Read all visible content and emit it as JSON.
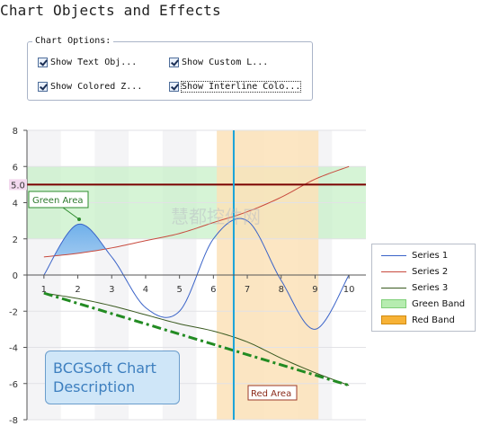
{
  "window": {
    "title": "Chart Objects and Effects"
  },
  "options": {
    "group_label": "Chart Options:",
    "show_text_objects": {
      "label": "Show Text Obj...",
      "checked": true
    },
    "show_custom_labels": {
      "label": "Show Custom L...",
      "checked": true
    },
    "show_colored_zones": {
      "label": "Show Colored Z...",
      "checked": true
    },
    "show_interline_colors": {
      "label": "Show Interline Colo...",
      "checked": true
    }
  },
  "chart": {
    "callout_line1": "BCGSoft Chart",
    "callout_line2": "Description",
    "green_area_label": "Green Area",
    "red_area_label": "Red Area",
    "const_line_label": "5.0",
    "watermark": "慧都控件网",
    "colors": {
      "series1": "#3a63c8",
      "series2": "#c84a3e",
      "series3": "#3a5a20",
      "green_band": "#c8f0c8",
      "red_band": "#fbe2b8",
      "const_line": "#7a0000",
      "vertical_line": "#1aa3d9",
      "trend_line": "#228b22"
    }
  },
  "legend": {
    "items": [
      {
        "label": "Series 1",
        "kind": "line",
        "color": "#3a63c8"
      },
      {
        "label": "Series 2",
        "kind": "line",
        "color": "#c84a3e"
      },
      {
        "label": "Series 3",
        "kind": "line",
        "color": "#3a5a20"
      },
      {
        "label": "Green Band",
        "kind": "swatch",
        "color": "#b6ecb0"
      },
      {
        "label": "Red Band",
        "kind": "swatch",
        "color": "#f7b236"
      }
    ]
  },
  "chart_data": {
    "type": "line",
    "x": [
      1,
      2,
      3,
      4,
      5,
      6,
      7,
      8,
      9,
      10
    ],
    "xlim": [
      0.5,
      10.5
    ],
    "ylim": [
      -8,
      8
    ],
    "y_ticks": [
      -8,
      -6,
      -4,
      -2,
      0,
      2,
      4,
      6,
      8
    ],
    "x_ticks": [
      1,
      2,
      3,
      4,
      5,
      6,
      7,
      8,
      9,
      10
    ],
    "grid": true,
    "legend_position": "right",
    "series": [
      {
        "name": "Series 1",
        "x": [
          1,
          2,
          3,
          4,
          5,
          6,
          7,
          8,
          9,
          10
        ],
        "values": [
          0,
          2.8,
          1.0,
          -1.8,
          -2.0,
          2.0,
          3.0,
          -0.3,
          -3.0,
          0
        ]
      },
      {
        "name": "Series 2",
        "x": [
          1,
          2,
          3,
          4,
          5,
          6,
          7,
          8,
          9,
          10
        ],
        "values": [
          1.0,
          1.2,
          1.5,
          1.9,
          2.3,
          2.9,
          3.5,
          4.3,
          5.3,
          6.0
        ]
      },
      {
        "name": "Series 3",
        "x": [
          1,
          2,
          3,
          4,
          5,
          6,
          7,
          8,
          9,
          10
        ],
        "values": [
          -1.0,
          -1.3,
          -1.7,
          -2.2,
          -2.7,
          -3.1,
          -3.7,
          -4.6,
          -5.4,
          -6.1
        ]
      }
    ],
    "trend_line": {
      "from": [
        1,
        -1.0
      ],
      "to": [
        10,
        -6.1
      ]
    },
    "const_line_y": 5.0,
    "green_band_y": [
      2,
      6
    ],
    "red_band_x": [
      6.1,
      9.1
    ],
    "vertical_line_x": 6.6
  }
}
